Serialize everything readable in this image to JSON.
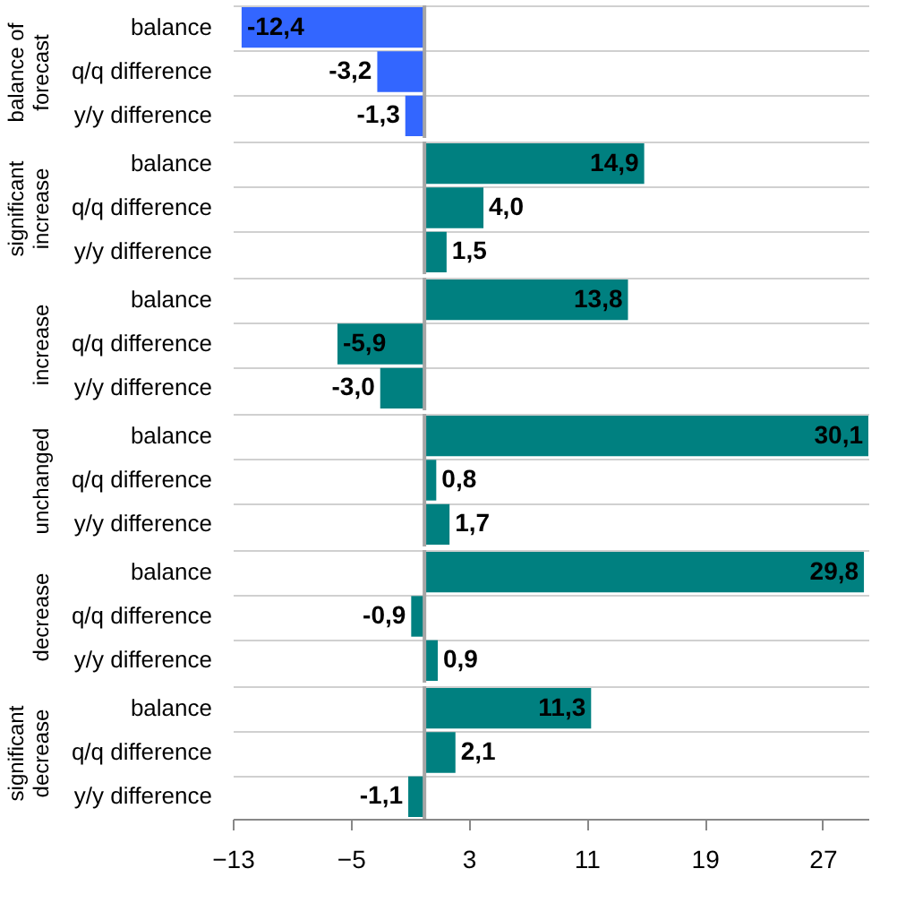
{
  "chart_data": [
    {
      "type": "bar",
      "orientation": "horizontal",
      "ylabel": "balance of forecast",
      "categories": [
        "balance",
        "q/q difference",
        "y/y difference"
      ],
      "values": [
        -12.4,
        -3.2,
        -1.3
      ],
      "value_labels": [
        "-12,4",
        "-3,2",
        "-1,3"
      ],
      "colors": [
        "#3366ff",
        "#3366ff",
        "#3366ff"
      ],
      "xlim": [
        -13,
        30.1
      ],
      "xticks": [
        -13,
        -5,
        3,
        11,
        19,
        27
      ],
      "tick_labels": "y",
      "grid": "y",
      "ref_lines": [
        {
          "axis": "x",
          "value": 0,
          "color": "#a6a6a6"
        }
      ]
    },
    {
      "type": "bar",
      "orientation": "horizontal",
      "ylabel": "significant increase",
      "categories": [
        "balance",
        "q/q difference",
        "y/y difference"
      ],
      "values": [
        14.9,
        4.0,
        1.5
      ],
      "value_labels": [
        "14,9",
        "4,0",
        "1,5"
      ],
      "colors": [
        "#008080",
        "#008080",
        "#008080"
      ],
      "xlim": [
        -13,
        30.1
      ],
      "xticks": [
        -13,
        -5,
        3,
        11,
        19,
        27
      ],
      "tick_labels": "y",
      "grid": "y",
      "ref_lines": [
        {
          "axis": "x",
          "value": 0,
          "color": "#a6a6a6"
        }
      ]
    },
    {
      "type": "bar",
      "orientation": "horizontal",
      "ylabel": "increase",
      "categories": [
        "balance",
        "q/q difference",
        "y/y difference"
      ],
      "values": [
        13.8,
        -5.9,
        -3.0
      ],
      "value_labels": [
        "13,8",
        "-5,9",
        "-3,0"
      ],
      "colors": [
        "#008080",
        "#008080",
        "#008080"
      ],
      "xlim": [
        -13,
        30.1
      ],
      "xticks": [
        -13,
        -5,
        3,
        11,
        19,
        27
      ],
      "tick_labels": "y",
      "grid": "y",
      "ref_lines": [
        {
          "axis": "x",
          "value": 0,
          "color": "#a6a6a6"
        }
      ]
    },
    {
      "type": "bar",
      "orientation": "horizontal",
      "ylabel": "unchanged",
      "categories": [
        "balance",
        "q/q difference",
        "y/y difference"
      ],
      "values": [
        30.1,
        0.8,
        1.7
      ],
      "value_labels": [
        "30,1",
        "0,8",
        "1,7"
      ],
      "colors": [
        "#008080",
        "#008080",
        "#008080"
      ],
      "xlim": [
        -13,
        30.1
      ],
      "xticks": [
        -13,
        -5,
        3,
        11,
        19,
        27
      ],
      "tick_labels": "y",
      "grid": "y",
      "ref_lines": [
        {
          "axis": "x",
          "value": 0,
          "color": "#a6a6a6"
        }
      ]
    },
    {
      "type": "bar",
      "orientation": "horizontal",
      "ylabel": "decrease",
      "categories": [
        "balance",
        "q/q difference",
        "y/y difference"
      ],
      "values": [
        29.8,
        -0.9,
        0.9
      ],
      "value_labels": [
        "29,8",
        "-0,9",
        "0,9"
      ],
      "colors": [
        "#008080",
        "#008080",
        "#008080"
      ],
      "xlim": [
        -13,
        30.1
      ],
      "xticks": [
        -13,
        -5,
        3,
        11,
        19,
        27
      ],
      "tick_labels": "y",
      "grid": "y",
      "ref_lines": [
        {
          "axis": "x",
          "value": 0,
          "color": "#a6a6a6"
        }
      ]
    },
    {
      "type": "bar",
      "orientation": "horizontal",
      "ylabel": "significant decrease",
      "categories": [
        "balance",
        "q/q difference",
        "y/y difference"
      ],
      "values": [
        11.3,
        2.1,
        -1.1
      ],
      "value_labels": [
        "11,3",
        "2,1",
        "-1,1"
      ],
      "colors": [
        "#008080",
        "#008080",
        "#008080"
      ],
      "xlim": [
        -13,
        30.1
      ],
      "xticks": [
        -13,
        -5,
        3,
        11,
        19,
        27
      ],
      "grid": "y",
      "ref_lines": [
        {
          "axis": "x",
          "value": 0,
          "color": "#a6a6a6"
        }
      ]
    }
  ]
}
